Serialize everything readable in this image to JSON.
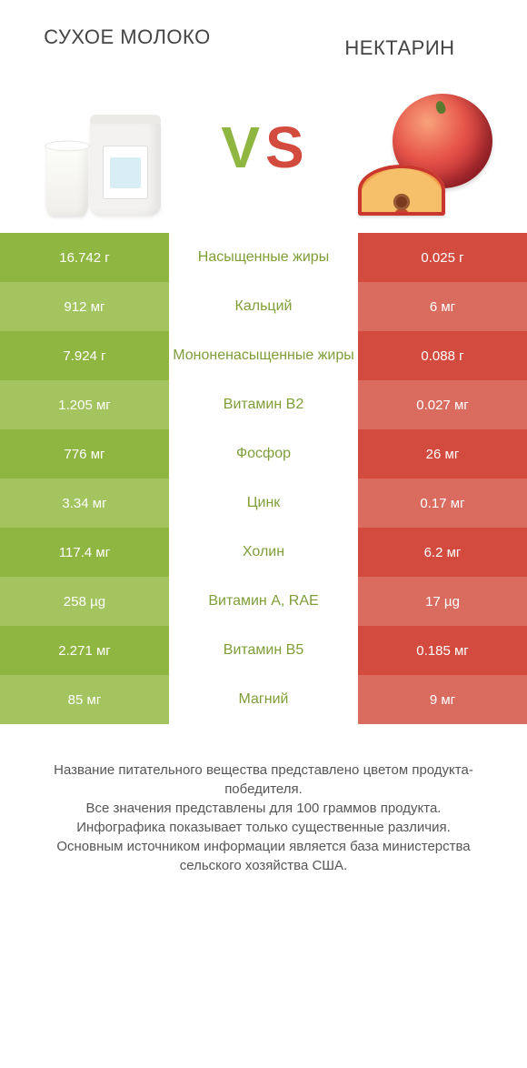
{
  "colors": {
    "left": "#8fb641",
    "left_alt": "#a3c45e",
    "right": "#d24b3e",
    "right_alt": "#da6c5f",
    "mid_text": "#7f9e3a",
    "footer": "#565656"
  },
  "header": {
    "left_title": "СУХОЕ МОЛОКО",
    "right_title": "НЕКТАРИН",
    "vs_v": "V",
    "vs_s": "S"
  },
  "rows": [
    {
      "label": "Насыщенные жиры",
      "left": "16.742 г",
      "right": "0.025 г",
      "winner": "left"
    },
    {
      "label": "Кальций",
      "left": "912 мг",
      "right": "6 мг",
      "winner": "left"
    },
    {
      "label": "Мононенасыщенные жиры",
      "left": "7.924 г",
      "right": "0.088 г",
      "winner": "left"
    },
    {
      "label": "Витамин B2",
      "left": "1.205 мг",
      "right": "0.027 мг",
      "winner": "left"
    },
    {
      "label": "Фосфор",
      "left": "776 мг",
      "right": "26 мг",
      "winner": "left"
    },
    {
      "label": "Цинк",
      "left": "3.34 мг",
      "right": "0.17 мг",
      "winner": "left"
    },
    {
      "label": "Холин",
      "left": "117.4 мг",
      "right": "6.2 мг",
      "winner": "left"
    },
    {
      "label": "Витамин A, RAE",
      "left": "258 µg",
      "right": "17 µg",
      "winner": "left"
    },
    {
      "label": "Витамин B5",
      "left": "2.271 мг",
      "right": "0.185 мг",
      "winner": "left"
    },
    {
      "label": "Магний",
      "left": "85 мг",
      "right": "9 мг",
      "winner": "left"
    }
  ],
  "footer_lines": [
    "Название питательного вещества представлено цветом продукта-победителя.",
    "Все значения представлены для 100 граммов продукта.",
    "Инфографика показывает только существенные различия.",
    "Основным источником информации является база министерства сельского хозяйства США."
  ]
}
